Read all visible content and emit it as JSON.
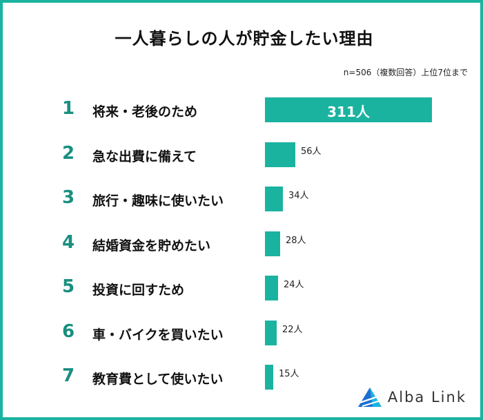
{
  "title": "一人暮らしの人が貯金したい理由",
  "note": "n=506（複数回答）上位7位まで",
  "chart_data": {
    "type": "bar",
    "orientation": "horizontal",
    "title": "一人暮らしの人が貯金したい理由",
    "ranks": [
      "1",
      "2",
      "3",
      "4",
      "5",
      "6",
      "7"
    ],
    "categories": [
      "将来・老後のため",
      "急な出費に備えて",
      "旅行・趣味に使いたい",
      "結婚資金を貯めたい",
      "投資に回すため",
      "車・バイクを買いたい",
      "教育費として使いたい"
    ],
    "values": [
      311,
      56,
      34,
      28,
      24,
      22,
      15
    ],
    "value_labels": [
      "311人",
      "56人",
      "34人",
      "28人",
      "24人",
      "22人",
      "15人"
    ],
    "grid": false,
    "legend": "none",
    "bar_color": "#1ab3a0"
  },
  "logo": {
    "text": "Alba Link"
  },
  "colors": {
    "accent": "#1ab3a0",
    "rank": "#1a8f80"
  }
}
